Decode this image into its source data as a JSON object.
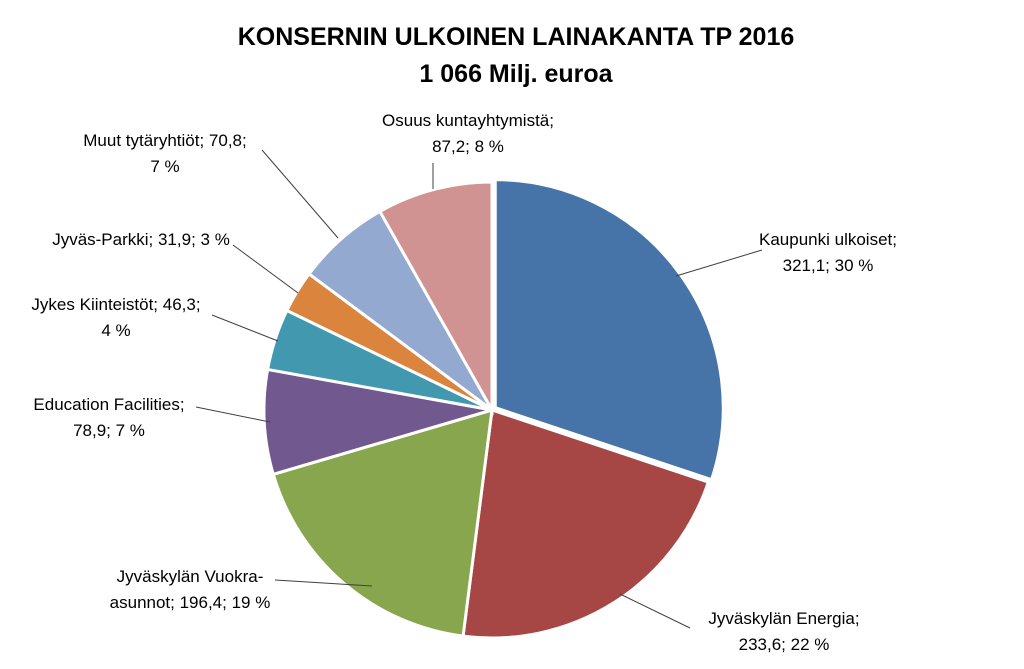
{
  "chart_data": {
    "type": "pie",
    "title": "KONSERNIN ULKOINEN LAINAKANTA TP 2016",
    "subtitle": "1 066 Milj. euroa",
    "slices": [
      {
        "label": "Kaupunki ulkoiset",
        "value": 321.1,
        "percent": "30 %",
        "color": "#4674A8",
        "label_lines": [
          "Kaupunki ulkoiset;",
          "321,1; 30 %"
        ]
      },
      {
        "label": "Jyväskylän Energia",
        "value": 233.6,
        "percent": "22 %",
        "color": "#A74745",
        "label_lines": [
          "Jyväskylän Energia;",
          "233,6; 22 %"
        ]
      },
      {
        "label": "Jyväskylän Vuokra-asunnot",
        "value": 196.4,
        "percent": "19 %",
        "color": "#88A64E",
        "label_lines": [
          "Jyväskylän Vuokra-",
          "asunnot; 196,4; 19 %"
        ]
      },
      {
        "label": "Education Facilities",
        "value": 78.9,
        "percent": "7 %",
        "color": "#71588F",
        "label_lines": [
          "Education Facilities;",
          "78,9; 7 %"
        ]
      },
      {
        "label": "Jykes Kiinteistöt",
        "value": 46.3,
        "percent": "4 %",
        "color": "#4198AF",
        "label_lines": [
          "Jykes Kiinteistöt; 46,3;",
          "4 %"
        ]
      },
      {
        "label": "Jyväs-Parkki",
        "value": 31.9,
        "percent": "3 %",
        "color": "#DB843D",
        "label_lines": [
          "Jyväs-Parkki; 31,9; 3 %"
        ]
      },
      {
        "label": "Muut tytäryhtiöt",
        "value": 70.8,
        "percent": "7 %",
        "color": "#93A9CF",
        "label_lines": [
          "Muut tytäryhtiöt; 70,8;",
          "7 %"
        ]
      },
      {
        "label": "Osuus kuntayhtymistä",
        "value": 87.2,
        "percent": "8 %",
        "color": "#D09392",
        "label_lines": [
          "Osuus kuntayhtymistä;",
          "87,2; 8 %"
        ]
      }
    ]
  }
}
